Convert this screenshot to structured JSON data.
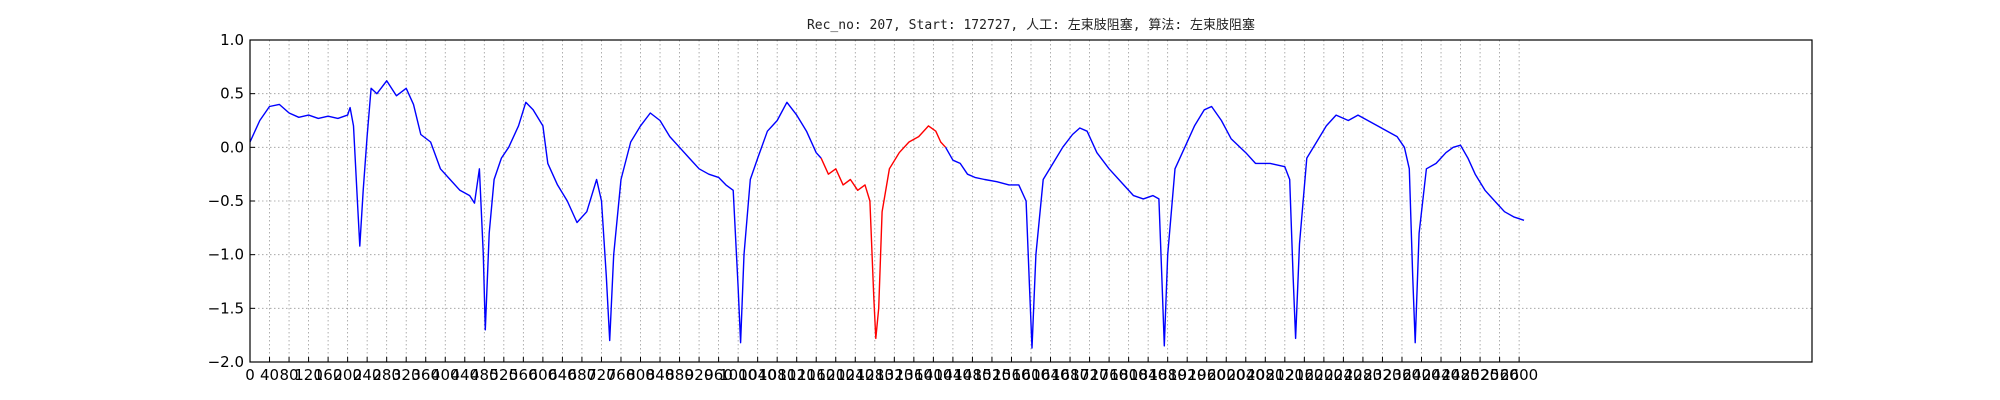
{
  "chart_data": {
    "type": "line",
    "title": "Rec_no: 207, Start: 172727, 人工: 左束肢阻塞, 算法: 左束肢阻塞",
    "xlabel": "",
    "ylabel": "",
    "xlim": [
      0,
      3200
    ],
    "ylim": [
      -2.0,
      1.0
    ],
    "grid": true,
    "x_tick_labels": [
      "0",
      "40",
      "80",
      "120",
      "160",
      "200",
      "240",
      "280",
      "320",
      "360",
      "400",
      "440",
      "480",
      "520",
      "560",
      "600",
      "640",
      "680",
      "720",
      "760",
      "800",
      "840",
      "880",
      "920",
      "960",
      "1000",
      "1040",
      "1080",
      "1120",
      "1160",
      "1200",
      "1240",
      "1280",
      "1320",
      "1360",
      "1400",
      "1440",
      "1480",
      "1520",
      "1560",
      "1600",
      "1640",
      "1680",
      "1720",
      "1760",
      "1800",
      "1840",
      "1880",
      "1920",
      "1960",
      "2000",
      "2040",
      "2080",
      "2120",
      "2160",
      "2200",
      "2240",
      "2280",
      "2320",
      "2360",
      "2400",
      "2440",
      "2480",
      "2520",
      "2560",
      "2600"
    ],
    "y_tick_labels": [
      "1.0",
      "0.5",
      "0.0",
      "−0.5",
      "−1.0",
      "−1.5",
      "−2.0"
    ],
    "y_ticks": [
      1.0,
      0.5,
      0.0,
      -0.5,
      -1.0,
      -1.5,
      -2.0
    ],
    "series": [
      {
        "color": "#0000ff",
        "points": [
          [
            0,
            0.05
          ],
          [
            20,
            0.25
          ],
          [
            40,
            0.38
          ],
          [
            60,
            0.4
          ],
          [
            80,
            0.32
          ],
          [
            100,
            0.28
          ],
          [
            120,
            0.3
          ],
          [
            140,
            0.27
          ],
          [
            160,
            0.29
          ],
          [
            180,
            0.27
          ],
          [
            200,
            0.3
          ],
          [
            205,
            0.37
          ],
          [
            212,
            0.2
          ],
          [
            220,
            -0.5
          ],
          [
            225,
            -0.92
          ],
          [
            232,
            -0.4
          ],
          [
            240,
            0.1
          ],
          [
            248,
            0.55
          ],
          [
            260,
            0.5
          ],
          [
            280,
            0.62
          ],
          [
            300,
            0.48
          ],
          [
            320,
            0.55
          ],
          [
            335,
            0.4
          ],
          [
            350,
            0.12
          ],
          [
            370,
            0.05
          ],
          [
            390,
            -0.2
          ],
          [
            410,
            -0.3
          ],
          [
            430,
            -0.4
          ],
          [
            450,
            -0.45
          ],
          [
            460,
            -0.52
          ],
          [
            470,
            -0.2
          ],
          [
            478,
            -1.0
          ],
          [
            482,
            -1.7
          ],
          [
            490,
            -0.8
          ],
          [
            500,
            -0.3
          ],
          [
            515,
            -0.1
          ],
          [
            530,
            0.0
          ],
          [
            550,
            0.2
          ],
          [
            565,
            0.42
          ],
          [
            580,
            0.35
          ],
          [
            600,
            0.2
          ],
          [
            610,
            -0.15
          ],
          [
            630,
            -0.35
          ],
          [
            650,
            -0.5
          ],
          [
            670,
            -0.7
          ],
          [
            690,
            -0.6
          ],
          [
            700,
            -0.45
          ],
          [
            710,
            -0.3
          ],
          [
            720,
            -0.5
          ],
          [
            730,
            -1.2
          ],
          [
            737,
            -1.8
          ],
          [
            745,
            -1.0
          ],
          [
            760,
            -0.3
          ],
          [
            780,
            0.05
          ],
          [
            800,
            0.2
          ],
          [
            820,
            0.32
          ],
          [
            840,
            0.25
          ],
          [
            860,
            0.1
          ],
          [
            880,
            0.0
          ],
          [
            900,
            -0.1
          ],
          [
            920,
            -0.2
          ],
          [
            940,
            -0.25
          ],
          [
            960,
            -0.28
          ],
          [
            975,
            -0.35
          ],
          [
            990,
            -0.4
          ],
          [
            1000,
            -1.3
          ],
          [
            1005,
            -1.82
          ],
          [
            1012,
            -1.0
          ],
          [
            1025,
            -0.3
          ],
          [
            1040,
            -0.1
          ],
          [
            1060,
            0.15
          ],
          [
            1080,
            0.25
          ],
          [
            1100,
            0.42
          ],
          [
            1120,
            0.3
          ],
          [
            1140,
            0.15
          ],
          [
            1160,
            -0.05
          ],
          [
            1170,
            -0.1
          ]
        ]
      },
      {
        "color": "#ff0000",
        "points": [
          [
            1170,
            -0.1
          ],
          [
            1185,
            -0.25
          ],
          [
            1200,
            -0.2
          ],
          [
            1215,
            -0.35
          ],
          [
            1230,
            -0.3
          ],
          [
            1245,
            -0.4
          ],
          [
            1260,
            -0.35
          ],
          [
            1270,
            -0.5
          ],
          [
            1278,
            -1.4
          ],
          [
            1282,
            -1.78
          ],
          [
            1288,
            -1.5
          ],
          [
            1295,
            -0.6
          ],
          [
            1310,
            -0.2
          ],
          [
            1330,
            -0.05
          ],
          [
            1350,
            0.05
          ],
          [
            1370,
            0.1
          ],
          [
            1390,
            0.2
          ],
          [
            1405,
            0.15
          ],
          [
            1415,
            0.05
          ],
          [
            1425,
            0.0
          ]
        ]
      },
      {
        "color": "#0000ff",
        "points": [
          [
            1425,
            0.0
          ],
          [
            1440,
            -0.12
          ],
          [
            1455,
            -0.15
          ],
          [
            1470,
            -0.25
          ],
          [
            1485,
            -0.28
          ],
          [
            1505,
            -0.3
          ],
          [
            1530,
            -0.32
          ],
          [
            1555,
            -0.35
          ],
          [
            1575,
            -0.35
          ],
          [
            1590,
            -0.5
          ],
          [
            1597,
            -1.3
          ],
          [
            1602,
            -1.87
          ],
          [
            1610,
            -1.0
          ],
          [
            1625,
            -0.3
          ],
          [
            1645,
            -0.15
          ],
          [
            1665,
            0.0
          ],
          [
            1685,
            0.12
          ],
          [
            1700,
            0.18
          ],
          [
            1715,
            0.15
          ],
          [
            1735,
            -0.05
          ],
          [
            1760,
            -0.2
          ],
          [
            1790,
            -0.35
          ],
          [
            1810,
            -0.45
          ],
          [
            1830,
            -0.48
          ],
          [
            1850,
            -0.45
          ],
          [
            1862,
            -0.48
          ],
          [
            1868,
            -1.2
          ],
          [
            1873,
            -1.85
          ],
          [
            1880,
            -1.0
          ],
          [
            1895,
            -0.2
          ],
          [
            1915,
            0.0
          ],
          [
            1935,
            0.2
          ],
          [
            1955,
            0.35
          ],
          [
            1970,
            0.38
          ],
          [
            1990,
            0.25
          ],
          [
            2010,
            0.08
          ],
          [
            2040,
            -0.05
          ],
          [
            2060,
            -0.15
          ],
          [
            2090,
            -0.15
          ],
          [
            2120,
            -0.18
          ],
          [
            2130,
            -0.3
          ],
          [
            2137,
            -1.2
          ],
          [
            2142,
            -1.78
          ],
          [
            2150,
            -0.9
          ],
          [
            2165,
            -0.1
          ],
          [
            2185,
            0.05
          ],
          [
            2205,
            0.2
          ],
          [
            2225,
            0.3
          ],
          [
            2250,
            0.25
          ],
          [
            2270,
            0.3
          ],
          [
            2290,
            0.25
          ],
          [
            2310,
            0.2
          ],
          [
            2330,
            0.15
          ],
          [
            2350,
            0.1
          ],
          [
            2365,
            0.0
          ],
          [
            2375,
            -0.2
          ],
          [
            2382,
            -1.2
          ],
          [
            2387,
            -1.82
          ],
          [
            2395,
            -0.8
          ],
          [
            2410,
            -0.2
          ],
          [
            2430,
            -0.15
          ],
          [
            2450,
            -0.05
          ],
          [
            2465,
            0.0
          ],
          [
            2480,
            0.02
          ],
          [
            2495,
            -0.1
          ],
          [
            2510,
            -0.25
          ],
          [
            2530,
            -0.4
          ],
          [
            2550,
            -0.5
          ],
          [
            2570,
            -0.6
          ],
          [
            2590,
            -0.65
          ],
          [
            2610,
            -0.68
          ]
        ]
      }
    ]
  }
}
